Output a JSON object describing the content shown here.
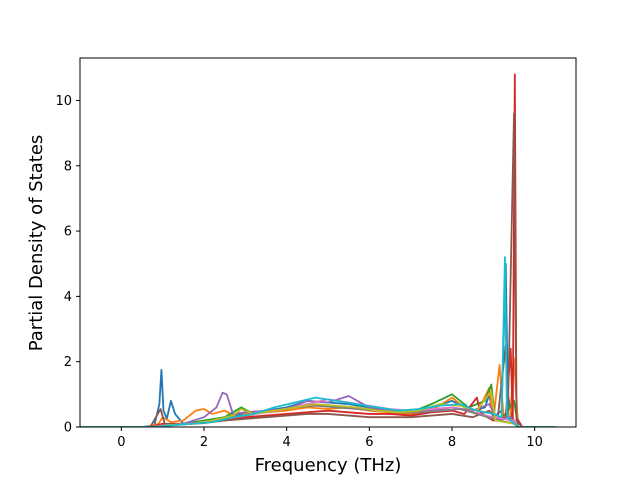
{
  "chart_data": {
    "type": "line",
    "title": "",
    "xlabel": "Frequency (THz)",
    "ylabel": "Partial Density of States",
    "xlim": [
      -1.0,
      11.0
    ],
    "ylim": [
      0,
      11.3
    ],
    "xticks": [
      0,
      2,
      4,
      6,
      8,
      10
    ],
    "yticks": [
      0,
      2,
      4,
      6,
      8,
      10
    ],
    "grid": false,
    "legend": "none",
    "series": [
      {
        "color": "#1f77b4",
        "points": [
          [
            -1.0,
            0
          ],
          [
            0.5,
            0
          ],
          [
            0.8,
            0.05
          ],
          [
            0.92,
            0.7
          ],
          [
            0.97,
            1.75
          ],
          [
            1.02,
            0.5
          ],
          [
            1.1,
            0.25
          ],
          [
            1.2,
            0.8
          ],
          [
            1.3,
            0.4
          ],
          [
            1.5,
            0.1
          ],
          [
            2.0,
            0.15
          ],
          [
            2.5,
            0.3
          ],
          [
            3.0,
            0.4
          ],
          [
            3.5,
            0.5
          ],
          [
            4.0,
            0.6
          ],
          [
            4.5,
            0.8
          ],
          [
            5.0,
            0.75
          ],
          [
            5.5,
            0.7
          ],
          [
            6.0,
            0.6
          ],
          [
            6.5,
            0.5
          ],
          [
            7.0,
            0.5
          ],
          [
            7.5,
            0.6
          ],
          [
            8.0,
            0.8
          ],
          [
            8.5,
            0.5
          ],
          [
            8.8,
            0.6
          ],
          [
            8.9,
            1.0
          ],
          [
            9.0,
            0.3
          ],
          [
            9.2,
            0.5
          ],
          [
            9.3,
            5.0
          ],
          [
            9.35,
            1.0
          ],
          [
            9.45,
            0.3
          ],
          [
            9.6,
            0
          ],
          [
            10.5,
            0
          ]
        ]
      },
      {
        "color": "#ff7f0e",
        "points": [
          [
            -1.0,
            0
          ],
          [
            0.6,
            0
          ],
          [
            0.9,
            0.1
          ],
          [
            1.0,
            0.3
          ],
          [
            1.2,
            0.15
          ],
          [
            1.5,
            0.2
          ],
          [
            1.8,
            0.5
          ],
          [
            2.0,
            0.55
          ],
          [
            2.2,
            0.4
          ],
          [
            2.5,
            0.5
          ],
          [
            2.8,
            0.3
          ],
          [
            3.0,
            0.4
          ],
          [
            3.5,
            0.45
          ],
          [
            4.0,
            0.5
          ],
          [
            4.5,
            0.6
          ],
          [
            5.0,
            0.55
          ],
          [
            5.5,
            0.6
          ],
          [
            6.0,
            0.5
          ],
          [
            6.5,
            0.45
          ],
          [
            7.0,
            0.4
          ],
          [
            7.5,
            0.5
          ],
          [
            8.0,
            0.9
          ],
          [
            8.3,
            0.6
          ],
          [
            8.6,
            0.4
          ],
          [
            8.9,
            1.2
          ],
          [
            9.0,
            0.2
          ],
          [
            9.15,
            1.9
          ],
          [
            9.25,
            0.3
          ],
          [
            9.4,
            0.2
          ],
          [
            9.5,
            2.1
          ],
          [
            9.6,
            0
          ],
          [
            10.5,
            0
          ]
        ]
      },
      {
        "color": "#2ca02c",
        "points": [
          [
            -1.0,
            0
          ],
          [
            0.7,
            0
          ],
          [
            1.0,
            0.08
          ],
          [
            1.5,
            0.1
          ],
          [
            2.0,
            0.2
          ],
          [
            2.5,
            0.3
          ],
          [
            2.9,
            0.6
          ],
          [
            3.2,
            0.4
          ],
          [
            3.6,
            0.5
          ],
          [
            4.0,
            0.55
          ],
          [
            4.5,
            0.7
          ],
          [
            5.0,
            0.65
          ],
          [
            5.5,
            0.6
          ],
          [
            6.0,
            0.55
          ],
          [
            6.5,
            0.5
          ],
          [
            7.0,
            0.45
          ],
          [
            7.5,
            0.7
          ],
          [
            8.0,
            1.0
          ],
          [
            8.4,
            0.6
          ],
          [
            8.8,
            0.8
          ],
          [
            8.95,
            1.3
          ],
          [
            9.05,
            0.2
          ],
          [
            9.3,
            0.4
          ],
          [
            9.5,
            0.8
          ],
          [
            9.6,
            0
          ],
          [
            10.5,
            0
          ]
        ]
      },
      {
        "color": "#d62728",
        "points": [
          [
            -1.0,
            0
          ],
          [
            0.7,
            0
          ],
          [
            1.0,
            0.1
          ],
          [
            1.5,
            0.1
          ],
          [
            2.0,
            0.15
          ],
          [
            2.5,
            0.2
          ],
          [
            3.0,
            0.3
          ],
          [
            3.5,
            0.35
          ],
          [
            4.0,
            0.4
          ],
          [
            4.5,
            0.45
          ],
          [
            5.0,
            0.5
          ],
          [
            5.5,
            0.45
          ],
          [
            6.0,
            0.4
          ],
          [
            6.5,
            0.4
          ],
          [
            7.0,
            0.35
          ],
          [
            7.5,
            0.45
          ],
          [
            8.0,
            0.5
          ],
          [
            8.3,
            0.4
          ],
          [
            8.6,
            0.9
          ],
          [
            8.7,
            0.4
          ],
          [
            9.0,
            0.2
          ],
          [
            9.3,
            0.3
          ],
          [
            9.42,
            2.4
          ],
          [
            9.47,
            0.2
          ],
          [
            9.52,
            10.8
          ],
          [
            9.56,
            0.3
          ],
          [
            9.7,
            0
          ],
          [
            10.5,
            0
          ]
        ]
      },
      {
        "color": "#9467bd",
        "points": [
          [
            -1.0,
            0
          ],
          [
            0.7,
            0
          ],
          [
            1.0,
            0.05
          ],
          [
            1.5,
            0.1
          ],
          [
            2.0,
            0.3
          ],
          [
            2.3,
            0.6
          ],
          [
            2.45,
            1.05
          ],
          [
            2.55,
            1.0
          ],
          [
            2.7,
            0.4
          ],
          [
            3.0,
            0.45
          ],
          [
            3.5,
            0.5
          ],
          [
            4.0,
            0.55
          ],
          [
            4.5,
            0.8
          ],
          [
            5.0,
            0.75
          ],
          [
            5.5,
            0.95
          ],
          [
            6.0,
            0.6
          ],
          [
            6.5,
            0.5
          ],
          [
            7.0,
            0.45
          ],
          [
            7.5,
            0.5
          ],
          [
            8.0,
            0.6
          ],
          [
            8.5,
            0.5
          ],
          [
            8.9,
            0.7
          ],
          [
            9.1,
            0.2
          ],
          [
            9.4,
            0.3
          ],
          [
            9.6,
            0
          ],
          [
            10.5,
            0
          ]
        ]
      },
      {
        "color": "#8c564b",
        "points": [
          [
            -1.0,
            0
          ],
          [
            0.7,
            0
          ],
          [
            0.95,
            0.55
          ],
          [
            1.05,
            0.1
          ],
          [
            1.5,
            0.08
          ],
          [
            2.0,
            0.12
          ],
          [
            2.5,
            0.2
          ],
          [
            3.0,
            0.25
          ],
          [
            3.5,
            0.3
          ],
          [
            4.0,
            0.35
          ],
          [
            4.5,
            0.4
          ],
          [
            5.0,
            0.4
          ],
          [
            5.5,
            0.35
          ],
          [
            6.0,
            0.3
          ],
          [
            6.5,
            0.3
          ],
          [
            7.0,
            0.3
          ],
          [
            7.5,
            0.35
          ],
          [
            8.0,
            0.4
          ],
          [
            8.5,
            0.3
          ],
          [
            8.9,
            0.5
          ],
          [
            9.1,
            0.2
          ],
          [
            9.3,
            2.5
          ],
          [
            9.35,
            0.3
          ],
          [
            9.5,
            9.6
          ],
          [
            9.56,
            0.2
          ],
          [
            9.7,
            0
          ],
          [
            10.5,
            0
          ]
        ]
      },
      {
        "color": "#e377c2",
        "points": [
          [
            -1.0,
            0
          ],
          [
            0.8,
            0
          ],
          [
            1.0,
            0.05
          ],
          [
            1.5,
            0.08
          ],
          [
            2.0,
            0.15
          ],
          [
            2.5,
            0.25
          ],
          [
            3.0,
            0.35
          ],
          [
            3.5,
            0.45
          ],
          [
            4.0,
            0.55
          ],
          [
            4.5,
            0.7
          ],
          [
            5.0,
            0.85
          ],
          [
            5.5,
            0.75
          ],
          [
            6.0,
            0.65
          ],
          [
            6.5,
            0.55
          ],
          [
            7.0,
            0.5
          ],
          [
            7.5,
            0.55
          ],
          [
            8.0,
            0.6
          ],
          [
            8.5,
            0.45
          ],
          [
            9.0,
            0.3
          ],
          [
            9.5,
            0.2
          ],
          [
            9.6,
            0
          ],
          [
            10.5,
            0
          ]
        ]
      },
      {
        "color": "#7f7f7f",
        "points": [
          [
            -1.0,
            0
          ],
          [
            0.8,
            0
          ],
          [
            1.2,
            0.05
          ],
          [
            1.7,
            0.1
          ],
          [
            2.2,
            0.2
          ],
          [
            2.7,
            0.3
          ],
          [
            3.2,
            0.4
          ],
          [
            3.7,
            0.5
          ],
          [
            4.2,
            0.6
          ],
          [
            4.7,
            0.65
          ],
          [
            5.2,
            0.6
          ],
          [
            5.7,
            0.55
          ],
          [
            6.2,
            0.5
          ],
          [
            6.7,
            0.45
          ],
          [
            7.2,
            0.45
          ],
          [
            7.7,
            0.5
          ],
          [
            8.2,
            0.55
          ],
          [
            8.6,
            0.4
          ],
          [
            9.0,
            0.25
          ],
          [
            9.5,
            0.1
          ],
          [
            9.6,
            0
          ],
          [
            10.5,
            0
          ]
        ]
      },
      {
        "color": "#bcbd22",
        "points": [
          [
            -1.0,
            0
          ],
          [
            0.8,
            0
          ],
          [
            1.2,
            0.06
          ],
          [
            1.7,
            0.1
          ],
          [
            2.2,
            0.2
          ],
          [
            2.7,
            0.35
          ],
          [
            2.9,
            0.55
          ],
          [
            3.2,
            0.4
          ],
          [
            3.7,
            0.5
          ],
          [
            4.2,
            0.6
          ],
          [
            4.7,
            0.7
          ],
          [
            5.2,
            0.65
          ],
          [
            5.7,
            0.6
          ],
          [
            6.2,
            0.5
          ],
          [
            6.7,
            0.45
          ],
          [
            7.2,
            0.5
          ],
          [
            7.7,
            0.7
          ],
          [
            8.2,
            0.65
          ],
          [
            8.6,
            0.5
          ],
          [
            8.95,
            1.1
          ],
          [
            9.05,
            0.2
          ],
          [
            9.5,
            0.1
          ],
          [
            9.6,
            0
          ],
          [
            10.5,
            0
          ]
        ]
      },
      {
        "color": "#17becf",
        "points": [
          [
            -1.0,
            0
          ],
          [
            0.8,
            0
          ],
          [
            1.2,
            0.05
          ],
          [
            1.7,
            0.1
          ],
          [
            2.2,
            0.15
          ],
          [
            2.7,
            0.3
          ],
          [
            3.2,
            0.4
          ],
          [
            3.7,
            0.6
          ],
          [
            4.2,
            0.75
          ],
          [
            4.7,
            0.9
          ],
          [
            5.2,
            0.8
          ],
          [
            5.7,
            0.7
          ],
          [
            6.2,
            0.6
          ],
          [
            6.7,
            0.5
          ],
          [
            7.2,
            0.55
          ],
          [
            7.7,
            0.65
          ],
          [
            8.2,
            0.7
          ],
          [
            8.6,
            0.5
          ],
          [
            9.0,
            0.4
          ],
          [
            9.2,
            0.3
          ],
          [
            9.28,
            5.2
          ],
          [
            9.33,
            0.3
          ],
          [
            9.5,
            0.1
          ],
          [
            9.6,
            0
          ],
          [
            10.5,
            0
          ]
        ]
      }
    ]
  }
}
